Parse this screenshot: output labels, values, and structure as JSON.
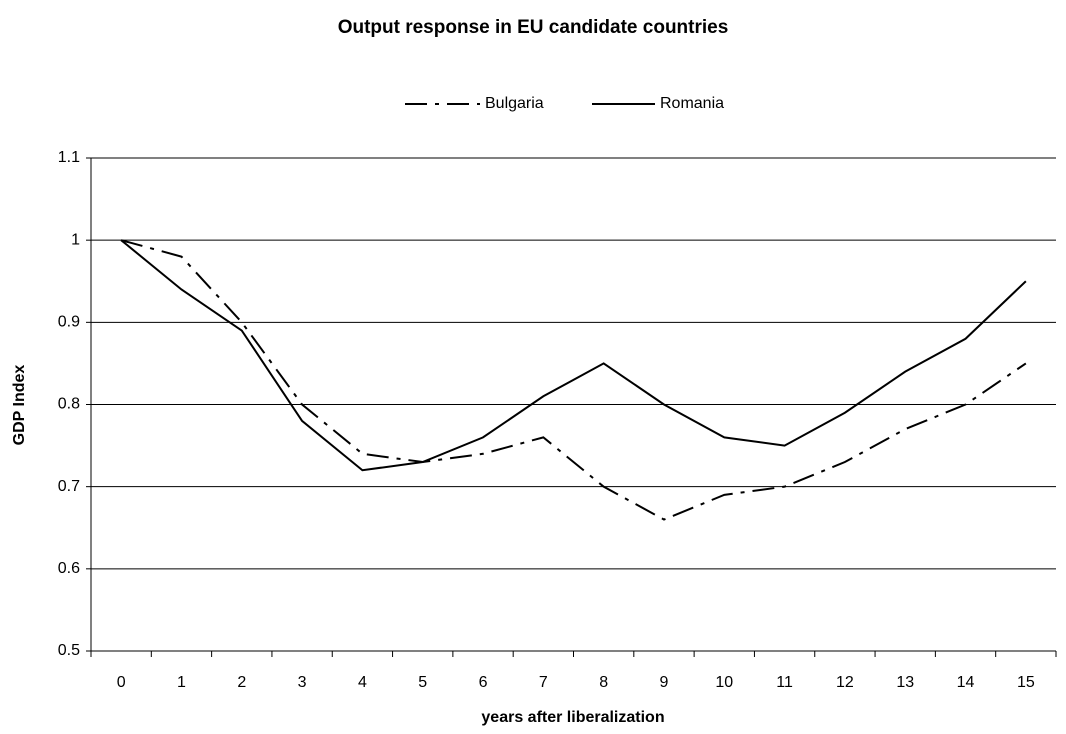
{
  "chart_data": {
    "type": "line",
    "title": "Output response in EU candidate countries",
    "x_label": "years after liberalization",
    "y_label": "GDP Index",
    "categories": [
      "0",
      "1",
      "2",
      "3",
      "4",
      "5",
      "6",
      "7",
      "8",
      "9",
      "10",
      "11",
      "12",
      "13",
      "14",
      "15"
    ],
    "series": [
      {
        "name": "Bulgaria",
        "color": "#000000",
        "style": "dash-dot",
        "values": [
          1,
          0.98,
          0.9,
          0.8,
          0.74,
          0.73,
          0.74,
          0.76,
          0.7,
          0.66,
          0.69,
          0.7,
          0.73,
          0.77,
          0.8,
          0.85
        ]
      },
      {
        "name": "Romania",
        "color": "#000000",
        "style": "solid",
        "values": [
          1,
          0.94,
          0.89,
          0.78,
          0.72,
          0.73,
          0.76,
          0.81,
          0.85,
          0.8,
          0.76,
          0.75,
          0.79,
          0.84,
          0.88,
          0.95
        ]
      }
    ],
    "ylim": [
      0.5,
      1.1
    ],
    "yticks": [
      0.5,
      0.6,
      0.7,
      0.8,
      0.9,
      1,
      1.1
    ],
    "grid": true,
    "legend": "top"
  }
}
